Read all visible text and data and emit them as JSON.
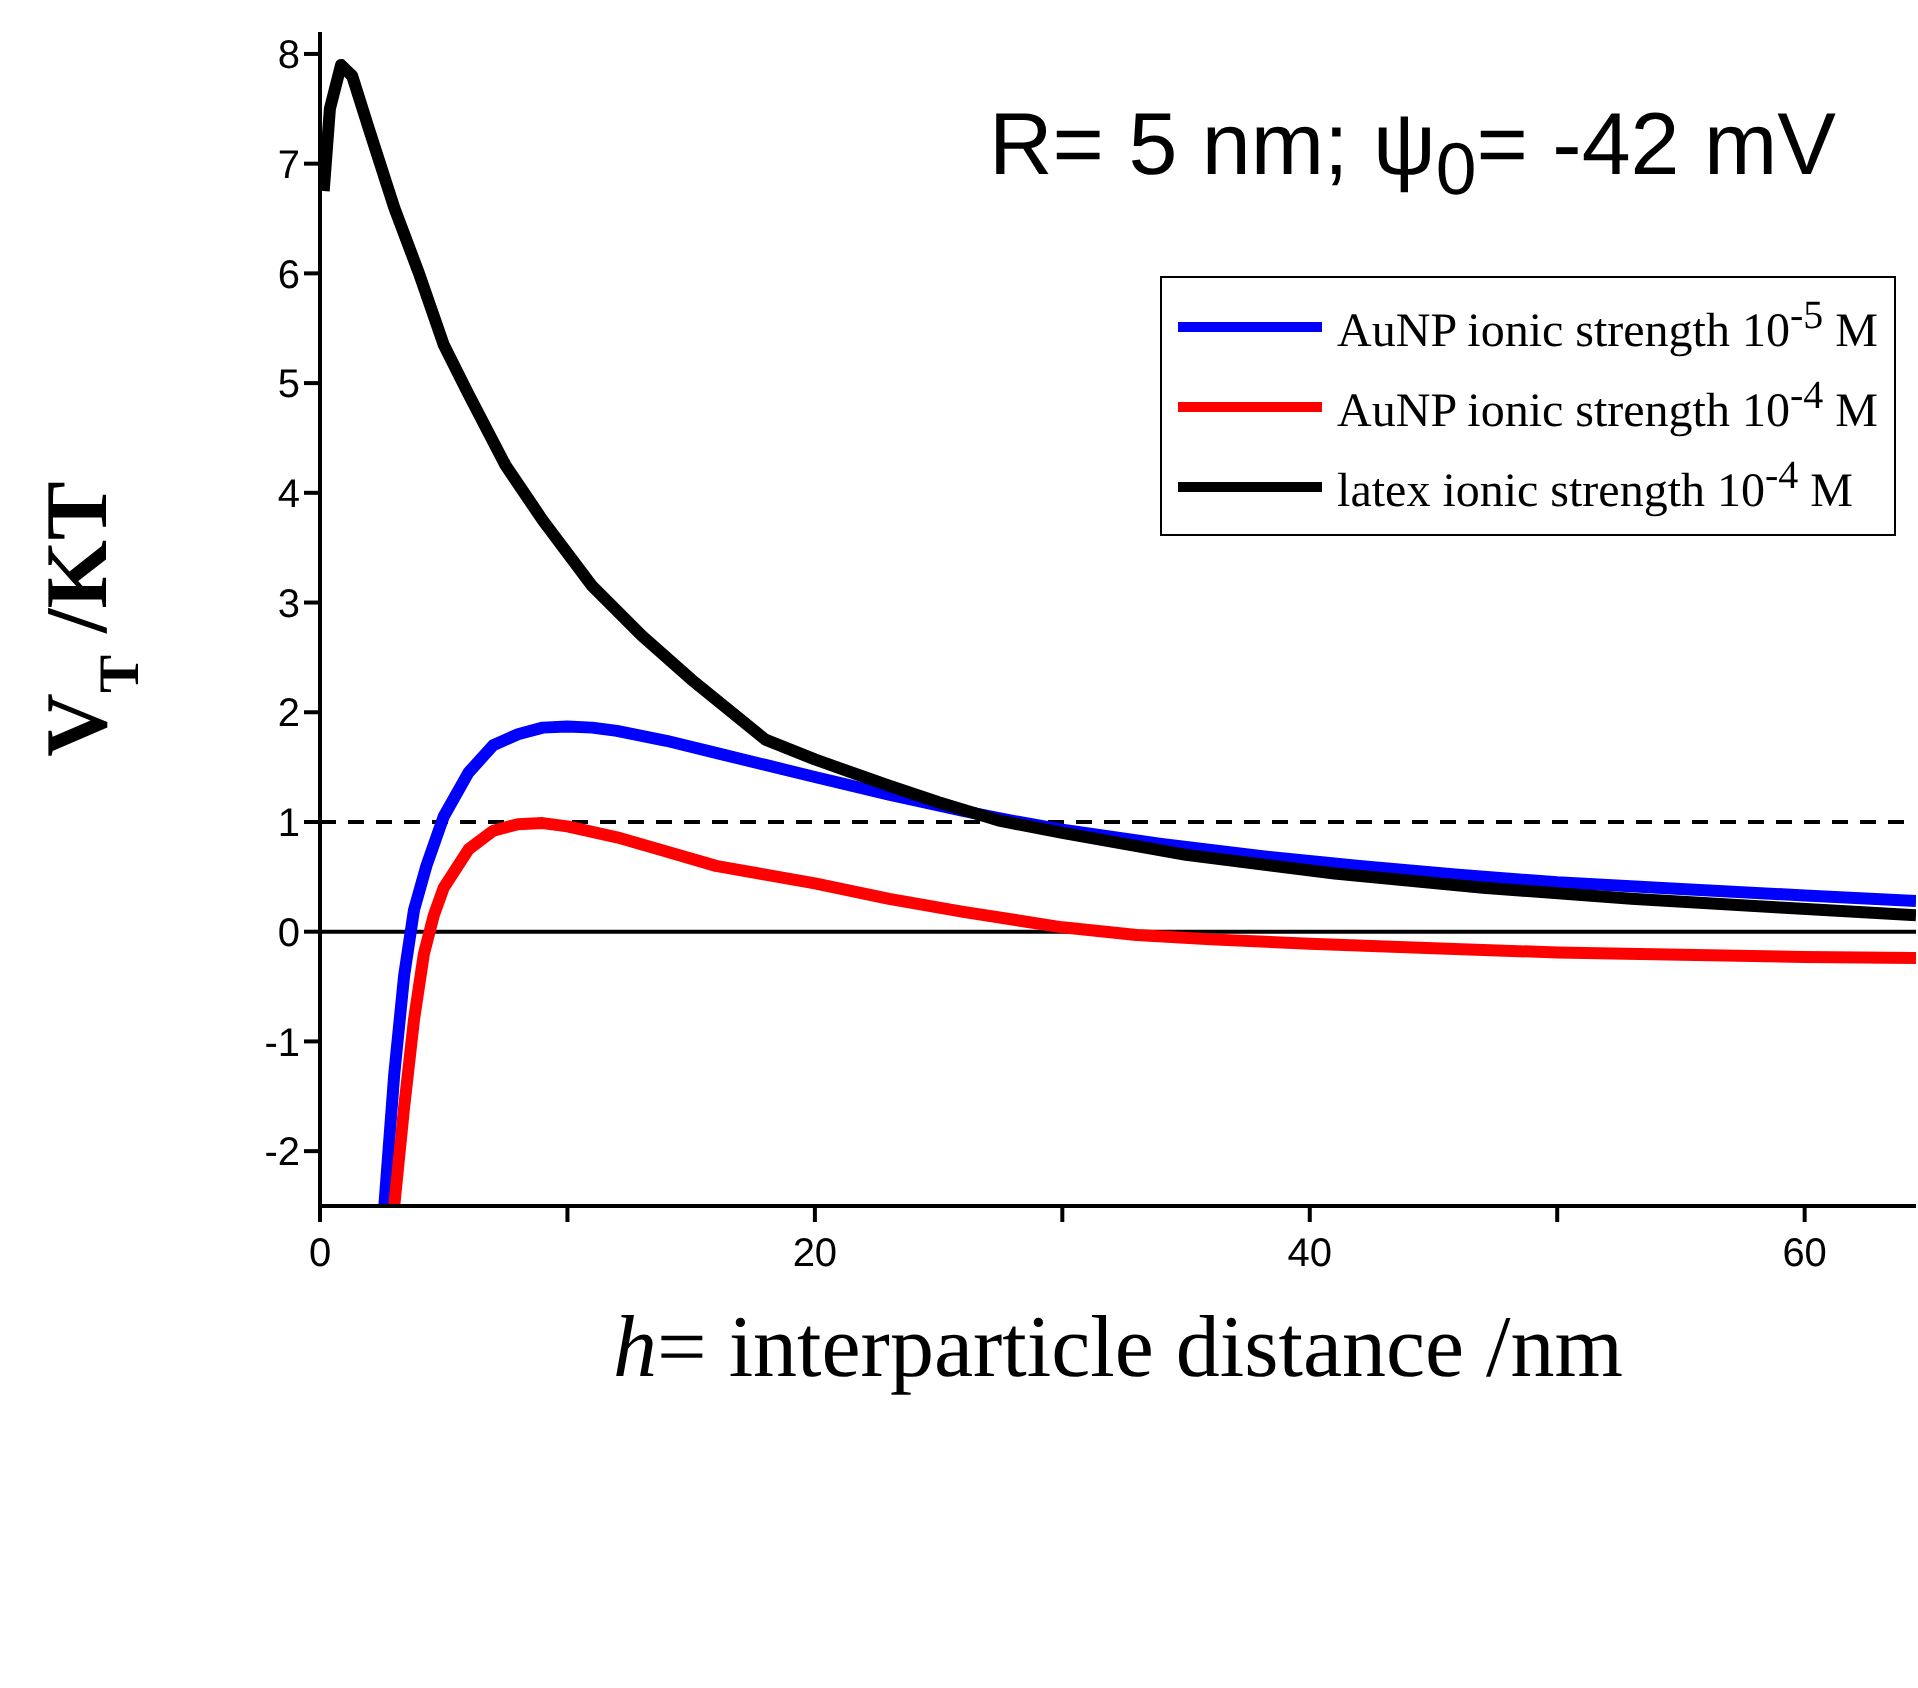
{
  "chart_data": {
    "type": "line",
    "xlabel": "h= interparticle distance /nm",
    "ylabel": "V$_{T}$ /KT",
    "annotations": [
      "R= 5 nm; ψ$_{0}$= -42 mV"
    ],
    "xlim": [
      0,
      64.5
    ],
    "ylim": [
      -2.5,
      8.2
    ],
    "xticks": [
      0,
      {
        "value": 10,
        "label": null
      },
      20,
      {
        "value": 30,
        "label": null
      },
      40,
      {
        "value": 50,
        "label": null
      },
      60
    ],
    "yticks": [
      -2,
      -1,
      0,
      1,
      2,
      3,
      4,
      5,
      6,
      7,
      8
    ],
    "legend": "top right",
    "grid": false,
    "marker": "none",
    "line_style": "solid",
    "ref_lines": [
      {
        "axis": "y",
        "value": 1,
        "label": null,
        "color": "#000000",
        "line_style": "dashed"
      },
      {
        "axis": "y",
        "value": 0,
        "label": null,
        "color": "#000000",
        "line_style": "solid"
      }
    ],
    "series": [
      {
        "name": "AuNP ionic strength 10$^{-5}$ M",
        "color": "#0000ff",
        "x": [
          2.6,
          3.0,
          3.4,
          3.8,
          4.3,
          5,
          6,
          7,
          8,
          9,
          10,
          11,
          12,
          14,
          16,
          18,
          20,
          23,
          26,
          28,
          30,
          34,
          38,
          42,
          46,
          50,
          55,
          60,
          64.5
        ],
        "values": [
          -2.5,
          -1.3,
          -0.4,
          0.2,
          0.6,
          1.05,
          1.45,
          1.7,
          1.8,
          1.86,
          1.87,
          1.86,
          1.83,
          1.74,
          1.63,
          1.52,
          1.41,
          1.25,
          1.1,
          1.01,
          0.93,
          0.8,
          0.69,
          0.6,
          0.52,
          0.45,
          0.39,
          0.33,
          0.28
        ]
      },
      {
        "name": "AuNP ionic strength 10$^{-4}$ M",
        "color": "#ff0000",
        "x": [
          3.0,
          3.4,
          3.8,
          4.2,
          4.6,
          5,
          6,
          7,
          8,
          9,
          10,
          12,
          14,
          16,
          18,
          20,
          23,
          26,
          30,
          33,
          36,
          40,
          45,
          50,
          55,
          60,
          64.5
        ],
        "values": [
          -2.5,
          -1.6,
          -0.8,
          -0.2,
          0.15,
          0.4,
          0.75,
          0.92,
          0.98,
          0.99,
          0.96,
          0.86,
          0.73,
          0.6,
          0.52,
          0.44,
          0.3,
          0.18,
          0.04,
          -0.03,
          -0.07,
          -0.11,
          -0.15,
          -0.19,
          -0.21,
          -0.23,
          -0.24
        ]
      },
      {
        "name": "latex ionic strength 10$^{-4}$ M",
        "color": "#000000",
        "x": [
          0.15,
          0.4,
          0.85,
          1.3,
          2,
          3,
          4,
          5,
          6,
          7.5,
          9,
          11,
          13,
          15,
          18,
          20,
          23,
          25,
          27.5,
          30,
          35,
          41,
          47,
          53,
          59,
          64.5
        ],
        "values": [
          6.75,
          7.5,
          7.9,
          7.8,
          7.3,
          6.6,
          6.0,
          5.35,
          4.9,
          4.25,
          3.75,
          3.15,
          2.7,
          2.3,
          1.75,
          1.57,
          1.33,
          1.18,
          1.01,
          0.9,
          0.7,
          0.53,
          0.4,
          0.3,
          0.22,
          0.15
        ]
      }
    ]
  }
}
